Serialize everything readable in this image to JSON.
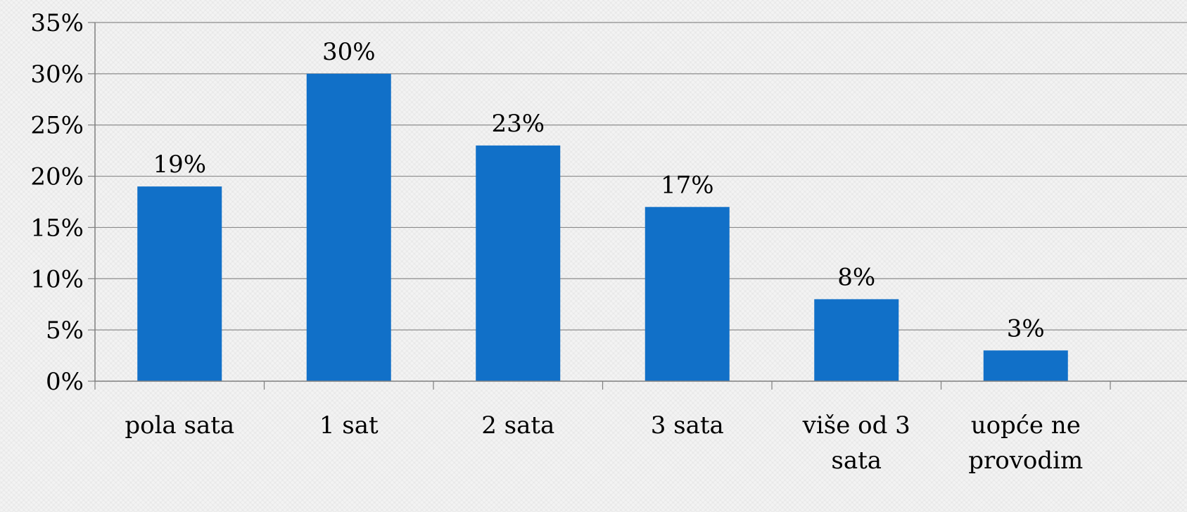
{
  "chart_data": {
    "type": "bar",
    "title": "",
    "xlabel": "",
    "ylabel": "",
    "categories": [
      "pola sata",
      "1 sat",
      "2 sata",
      "3 sata",
      "više od 3 sata",
      "uopće ne provodim"
    ],
    "category_lines": [
      [
        "pola sata"
      ],
      [
        "1 sat"
      ],
      [
        "2 sata"
      ],
      [
        "3 sata"
      ],
      [
        "više od 3",
        "sata"
      ],
      [
        "uopće ne",
        "provodim"
      ]
    ],
    "values": [
      19,
      30,
      23,
      17,
      8,
      3
    ],
    "value_labels": [
      "19%",
      "30%",
      "23%",
      "17%",
      "8%",
      "3%"
    ],
    "ylim": [
      0,
      35
    ],
    "yticks": [
      0,
      5,
      10,
      15,
      20,
      25,
      30,
      35
    ],
    "ytick_labels": [
      "0%",
      "5%",
      "10%",
      "15%",
      "20%",
      "25%",
      "30%",
      "35%"
    ],
    "grid": true,
    "legend": false,
    "bar_color": "#1170c8",
    "grid_color": "#8c8c8c",
    "axis_color": "#7f7f7f"
  }
}
